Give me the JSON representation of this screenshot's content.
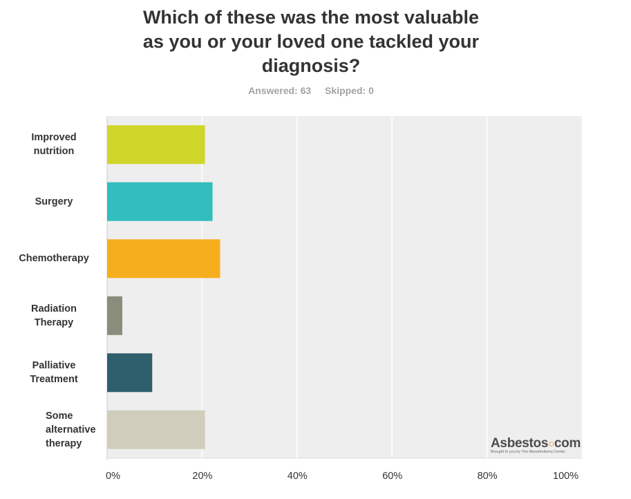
{
  "title_lines": [
    "Which of these was the most valuable",
    "as you or your loved one tackled your",
    "diagnosis?"
  ],
  "answered": "Answered: 63",
  "skipped": "Skipped: 0",
  "chart_data": {
    "type": "bar",
    "orientation": "horizontal",
    "categories": [
      "Improved nutrition",
      "Surgery",
      "Chemotherapy",
      "Radiation Therapy",
      "Palliative Treatment",
      "Some alternative therapy"
    ],
    "category_label_lines": [
      [
        "Improved",
        "nutrition"
      ],
      [
        "Surgery"
      ],
      [
        "Chemotherapy"
      ],
      [
        "Radiation",
        "Therapy"
      ],
      [
        "Palliative",
        "Treatment"
      ],
      [
        "Some",
        "alternative",
        "therapy"
      ]
    ],
    "values": [
      20.6,
      22.2,
      23.8,
      3.2,
      9.5,
      20.6
    ],
    "colors": [
      "#cfd629",
      "#33bdbe",
      "#f6ae1e",
      "#8c8c7c",
      "#2f5f6d",
      "#d0cdbd"
    ],
    "xlim": [
      0,
      100
    ],
    "xticks": [
      "0%",
      "20%",
      "40%",
      "60%",
      "80%",
      "100%"
    ],
    "grid": true,
    "plot_background": "#eeeeee"
  },
  "logo": {
    "name": "Asbestos",
    "suffix": "com",
    "tagline": "Brought to you by The Mesothelioma Center"
  }
}
